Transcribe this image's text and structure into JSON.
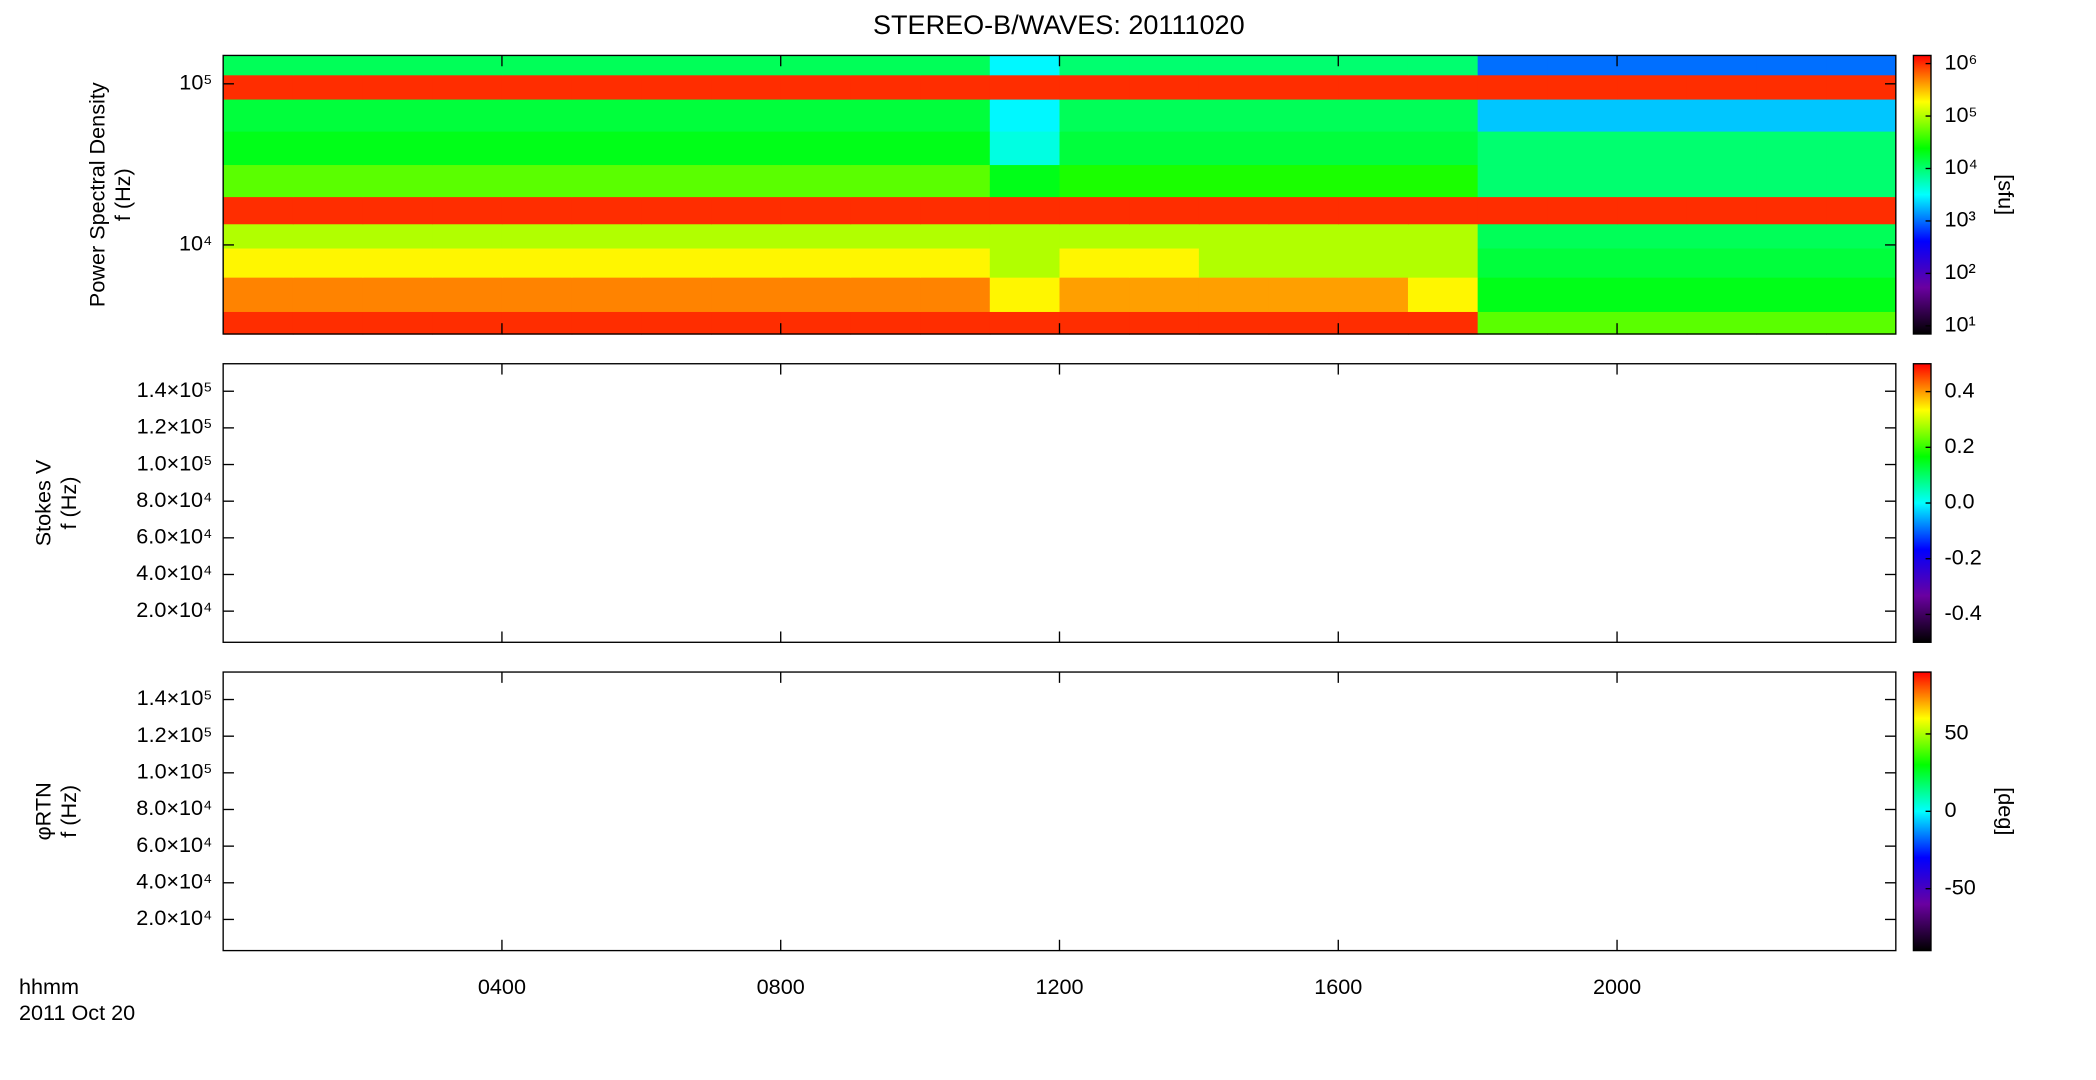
{
  "chart_data": [
    {
      "type": "heatmap",
      "title": "STEREO-B/WAVES: 20111020",
      "ylabel": [
        "Power Spectral Density",
        "f (Hz)"
      ],
      "yscale": "log",
      "ylim": [
        2800,
        150000
      ],
      "yticks": [
        {
          "value": 10000,
          "label": "10⁴"
        },
        {
          "value": 100000,
          "label": "10⁵"
        }
      ],
      "x": [
        0.5,
        1.5,
        2.5,
        3.5,
        4.5,
        5.5,
        6.5,
        7.5,
        8.5,
        9.5,
        10.5,
        11.5,
        12.5,
        13.5,
        14.5,
        15.5,
        16.5,
        17.5,
        18.5,
        19.5,
        20.5,
        21.5,
        22.5,
        23.5
      ],
      "y": [
        3000,
        5000,
        8000,
        11500,
        16000,
        25000,
        40000,
        65000,
        100000,
        130000
      ],
      "z": [
        [
          1000000.0,
          1000000.0,
          1000000.0,
          1000000.0,
          1000000.0,
          1000000.0,
          1000000.0,
          1000000.0,
          1000000.0,
          1000000.0,
          1000000.0,
          1000000.0,
          1000000.0,
          1000000.0,
          1000000.0,
          1000000.0,
          1000000.0,
          1000000.0,
          50000.0,
          50000.0,
          50000.0,
          50000.0,
          50000.0,
          50000.0
        ],
        [
          500000.0,
          500000.0,
          500000.0,
          500000.0,
          500000.0,
          500000.0,
          500000.0,
          500000.0,
          500000.0,
          500000.0,
          500000.0,
          200000.0,
          400000.0,
          400000.0,
          400000.0,
          400000.0,
          400000.0,
          200000.0,
          20000.0,
          20000.0,
          20000.0,
          20000.0,
          20000.0,
          20000.0
        ],
        [
          200000.0,
          200000.0,
          200000.0,
          200000.0,
          200000.0,
          200000.0,
          200000.0,
          200000.0,
          200000.0,
          200000.0,
          200000.0,
          100000.0,
          200000.0,
          200000.0,
          100000.0,
          100000.0,
          100000.0,
          100000.0,
          15000.0,
          15000.0,
          15000.0,
          15000.0,
          15000.0,
          15000.0
        ],
        [
          100000.0,
          100000.0,
          100000.0,
          100000.0,
          100000.0,
          100000.0,
          100000.0,
          100000.0,
          100000.0,
          100000.0,
          100000.0,
          100000.0,
          100000.0,
          100000.0,
          100000.0,
          100000.0,
          100000.0,
          100000.0,
          12000.0,
          12000.0,
          12000.0,
          12000.0,
          12000.0,
          12000.0
        ],
        [
          1000000.0,
          1000000.0,
          1000000.0,
          1000000.0,
          1000000.0,
          1000000.0,
          1000000.0,
          1000000.0,
          1000000.0,
          1000000.0,
          1000000.0,
          1000000.0,
          1000000.0,
          1000000.0,
          1000000.0,
          1000000.0,
          1000000.0,
          1000000.0,
          1000000.0,
          1000000.0,
          1000000.0,
          1000000.0,
          1000000.0,
          1000000.0
        ],
        [
          50000.0,
          50000.0,
          50000.0,
          50000.0,
          50000.0,
          50000.0,
          50000.0,
          50000.0,
          50000.0,
          50000.0,
          50000.0,
          20000.0,
          30000.0,
          30000.0,
          30000.0,
          30000.0,
          30000.0,
          30000.0,
          10000.0,
          10000.0,
          10000.0,
          10000.0,
          10000.0,
          10000.0
        ],
        [
          20000.0,
          20000.0,
          20000.0,
          20000.0,
          20000.0,
          20000.0,
          20000.0,
          20000.0,
          20000.0,
          20000.0,
          20000.0,
          4000.0,
          15000.0,
          15000.0,
          15000.0,
          15000.0,
          15000.0,
          15000.0,
          10000.0,
          10000.0,
          10000.0,
          10000.0,
          10000.0,
          10000.0
        ],
        [
          15000.0,
          15000.0,
          15000.0,
          15000.0,
          15000.0,
          15000.0,
          15000.0,
          15000.0,
          15000.0,
          15000.0,
          15000.0,
          3000.0,
          12000.0,
          12000.0,
          12000.0,
          12000.0,
          12000.0,
          12000.0,
          2000.0,
          2000.0,
          2000.0,
          2000.0,
          2000.0,
          2000.0
        ],
        [
          1000000.0,
          1000000.0,
          1000000.0,
          1000000.0,
          1000000.0,
          1000000.0,
          1000000.0,
          1000000.0,
          1000000.0,
          1000000.0,
          1000000.0,
          1000000.0,
          1000000.0,
          1000000.0,
          1000000.0,
          1000000.0,
          1000000.0,
          1000000.0,
          1000000.0,
          1000000.0,
          1000000.0,
          1000000.0,
          1000000.0,
          1000000.0
        ],
        [
          12000.0,
          12000.0,
          12000.0,
          12000.0,
          12000.0,
          12000.0,
          12000.0,
          12000.0,
          12000.0,
          12000.0,
          12000.0,
          3000.0,
          10000.0,
          10000.0,
          10000.0,
          10000.0,
          10000.0,
          10000.0,
          1000.0,
          1000.0,
          1000.0,
          1000.0,
          1000.0,
          1000.0
        ]
      ],
      "colormap": [
        "#000000",
        "#6a00a0",
        "#0000ff",
        "#00ffff",
        "#00ff00",
        "#ffff00",
        "#ff0000"
      ],
      "colorbar": {
        "scale": "log",
        "lim": [
          7,
          1430000
        ],
        "label": "[sfu]",
        "ticks": [
          {
            "value": 10,
            "label": "10¹"
          },
          {
            "value": 100,
            "label": "10²"
          },
          {
            "value": 1000,
            "label": "10³"
          },
          {
            "value": 10000,
            "label": "10⁴"
          },
          {
            "value": 100000,
            "label": "10⁵"
          },
          {
            "value": 1000000,
            "label": "10⁶"
          }
        ]
      }
    },
    {
      "type": "heatmap",
      "ylabel": [
        "Stokes V",
        "f (Hz)"
      ],
      "yscale": "linear",
      "ylim": [
        3000,
        155000
      ],
      "yticks": [
        {
          "value": 20000,
          "label": "2.0×10⁴"
        },
        {
          "value": 40000,
          "label": "4.0×10⁴"
        },
        {
          "value": 60000,
          "label": "6.0×10⁴"
        },
        {
          "value": 80000,
          "label": "8.0×10⁴"
        },
        {
          "value": 100000,
          "label": "1.0×10⁵"
        },
        {
          "value": 120000,
          "label": "1.2×10⁵"
        },
        {
          "value": 140000,
          "label": "1.4×10⁵"
        }
      ],
      "colormap": [
        "#000000",
        "#6a00a0",
        "#0000ff",
        "#00ffff",
        "#00ff00",
        "#ffff00",
        "#ff0000"
      ],
      "colorbar": {
        "scale": "linear",
        "lim": [
          -0.5,
          0.5
        ],
        "ticks": [
          -0.4,
          -0.2,
          {
            "value": 0,
            "label": "0.0"
          },
          0.2,
          0.4
        ]
      }
    },
    {
      "type": "heatmap",
      "ylabel": [
        "φRTN",
        "f (Hz)"
      ],
      "yscale": "linear",
      "ylim": [
        3000,
        155000
      ],
      "yticks": [
        {
          "value": 20000,
          "label": "2.0×10⁴"
        },
        {
          "value": 40000,
          "label": "4.0×10⁴"
        },
        {
          "value": 60000,
          "label": "6.0×10⁴"
        },
        {
          "value": 80000,
          "label": "8.0×10⁴"
        },
        {
          "value": 100000,
          "label": "1.0×10⁵"
        },
        {
          "value": 120000,
          "label": "1.2×10⁵"
        },
        {
          "value": 140000,
          "label": "1.4×10⁵"
        }
      ],
      "colormap": [
        "#000000",
        "#6a00a0",
        "#0000ff",
        "#00ffff",
        "#00ff00",
        "#ffff00",
        "#ff0000"
      ],
      "colorbar": {
        "scale": "linear",
        "lim": [
          -90,
          90
        ],
        "label": "[deg]",
        "ticks": [
          -50,
          0,
          50
        ]
      },
      "xlim": [
        0,
        24
      ],
      "xticks": [
        {
          "value": 4,
          "label": "0400"
        },
        {
          "value": 8,
          "label": "0800"
        },
        {
          "value": 12,
          "label": "1200"
        },
        {
          "value": 16,
          "label": "1600"
        },
        {
          "value": 20,
          "label": "2000"
        }
      ],
      "xlabel": [
        "hhmm",
        "2011 Oct 20"
      ]
    }
  ]
}
